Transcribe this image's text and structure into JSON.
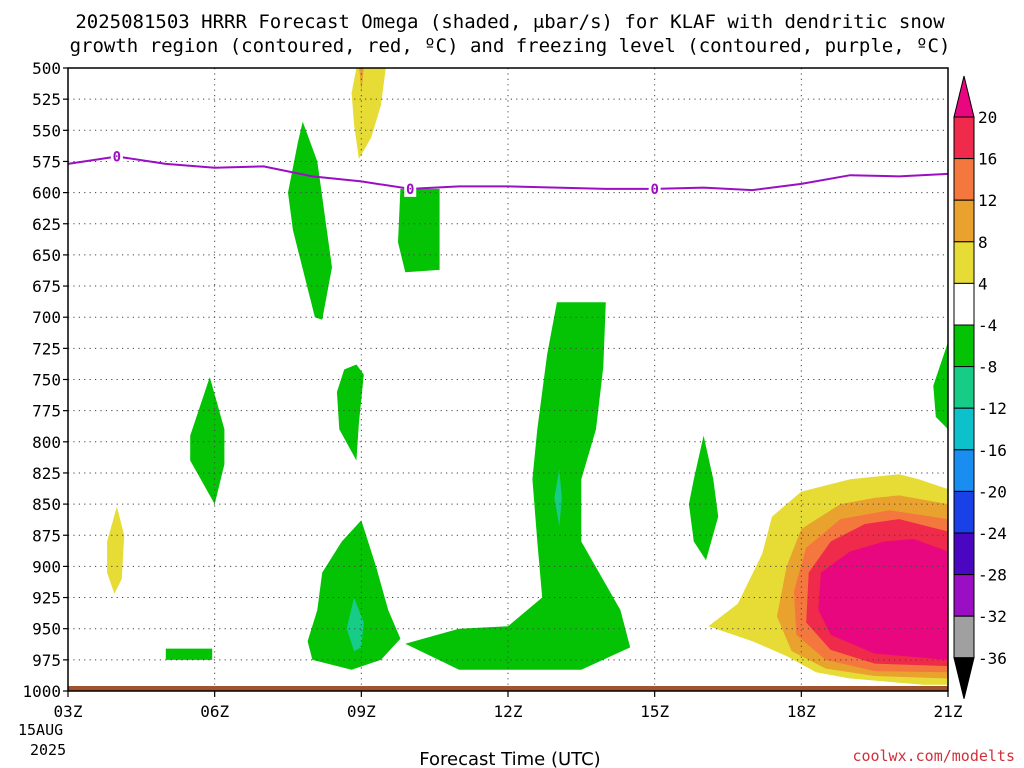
{
  "chart_data": {
    "type": "heatmap",
    "title_line1": "2025081503 HRRR Forecast Omega (shaded, μbar/s) for KLAF with dendritic snow",
    "title_line2": "growth region (contoured, red, ºC) and freezing level (contoured, purple, ºC)",
    "xlabel": "Forecast Time (UTC)",
    "date_label_1": "15AUG",
    "date_label_2": "2025",
    "credit": "coolwx.com/modelts",
    "x_ticks": [
      "03Z",
      "06Z",
      "09Z",
      "12Z",
      "15Z",
      "18Z",
      "21Z"
    ],
    "x_range_hours": [
      3,
      21
    ],
    "y_ticks": [
      "500",
      "525",
      "550",
      "575",
      "600",
      "625",
      "650",
      "675",
      "700",
      "725",
      "750",
      "775",
      "800",
      "825",
      "850",
      "875",
      "900",
      "925",
      "950",
      "975",
      "1000"
    ],
    "y_range_mb": [
      500,
      1000
    ],
    "grid": true,
    "colorbar": {
      "labels": [
        "20",
        "16",
        "12",
        "8",
        "4",
        "-4",
        "-8",
        "-12",
        "-16",
        "-20",
        "-24",
        "-28",
        "-32",
        "-36"
      ],
      "bins": [
        {
          "range": "> 20",
          "color": "#e8077f"
        },
        {
          "range": "16 to 20",
          "color": "#ef2a4a"
        },
        {
          "range": "12 to 16",
          "color": "#f4773e"
        },
        {
          "range": "8 to 12",
          "color": "#e9a22e"
        },
        {
          "range": "4 to 8",
          "color": "#e6dc35"
        },
        {
          "range": "-4 to 4",
          "color": "#ffffff"
        },
        {
          "range": "-8 to -4",
          "color": "#04c304"
        },
        {
          "range": "-12 to -8",
          "color": "#16cc86"
        },
        {
          "range": "-16 to -12",
          "color": "#0cc0cc"
        },
        {
          "range": "-20 to -16",
          "color": "#1a8ef0"
        },
        {
          "range": "-24 to -20",
          "color": "#1a40e8"
        },
        {
          "range": "-28 to -24",
          "color": "#4a06c0"
        },
        {
          "range": "-32 to -28",
          "color": "#9a0ec4"
        },
        {
          "range": "-36 to -32",
          "color": "#a0a0a0"
        },
        {
          "range": "< -36",
          "color": "#000000"
        }
      ]
    },
    "freezing_level": {
      "label": "0",
      "color": "#9b0fc4",
      "points": [
        [
          3.0,
          577
        ],
        [
          4.0,
          571
        ],
        [
          5.0,
          577
        ],
        [
          6.0,
          580
        ],
        [
          7.0,
          579
        ],
        [
          8.0,
          587
        ],
        [
          9.0,
          591
        ],
        [
          10.0,
          597
        ],
        [
          11.0,
          595
        ],
        [
          12.0,
          595
        ],
        [
          13.0,
          596
        ],
        [
          14.0,
          597
        ],
        [
          15.0,
          597
        ],
        [
          16.0,
          596
        ],
        [
          17.0,
          598
        ],
        [
          18.0,
          593
        ],
        [
          19.0,
          586
        ],
        [
          20.0,
          587
        ],
        [
          21.0,
          585
        ]
      ],
      "label_hours": [
        4.0,
        10.0,
        15.0
      ]
    },
    "omega_regions": [
      {
        "value_range": "4 to 8",
        "polygon": [
          [
            8.9,
            500
          ],
          [
            9.5,
            500
          ],
          [
            9.4,
            530
          ],
          [
            9.2,
            556
          ],
          [
            8.95,
            573
          ],
          [
            8.85,
            545
          ],
          [
            8.8,
            520
          ]
        ]
      },
      {
        "value_range": "8 to 12",
        "polygon": [
          [
            8.95,
            500
          ],
          [
            9.05,
            500
          ],
          [
            9.0,
            520
          ],
          [
            8.97,
            505
          ]
        ]
      },
      {
        "value_range": "-8 to -4",
        "polygon": [
          [
            7.8,
            543
          ],
          [
            8.1,
            575
          ],
          [
            8.4,
            660
          ],
          [
            8.2,
            702
          ],
          [
            8.05,
            700
          ],
          [
            7.6,
            630
          ],
          [
            7.5,
            600
          ],
          [
            7.7,
            560
          ]
        ]
      },
      {
        "value_range": "-8 to -4",
        "polygon": [
          [
            9.8,
            597
          ],
          [
            10.6,
            597
          ],
          [
            10.6,
            662
          ],
          [
            9.9,
            664
          ],
          [
            9.75,
            640
          ]
        ]
      },
      {
        "value_range": "-8 to -4",
        "polygon": [
          [
            8.65,
            742
          ],
          [
            8.9,
            738
          ],
          [
            9.05,
            746
          ],
          [
            8.95,
            785
          ],
          [
            8.9,
            815
          ],
          [
            8.55,
            790
          ],
          [
            8.5,
            760
          ]
        ]
      },
      {
        "value_range": "-8 to -4",
        "polygon": [
          [
            5.9,
            748
          ],
          [
            6.2,
            790
          ],
          [
            6.2,
            818
          ],
          [
            6.0,
            850
          ],
          [
            5.5,
            815
          ],
          [
            5.5,
            795
          ]
        ]
      },
      {
        "value_range": "4 to 8",
        "polygon": [
          [
            4.0,
            852
          ],
          [
            4.15,
            875
          ],
          [
            4.1,
            910
          ],
          [
            3.95,
            922
          ],
          [
            3.8,
            905
          ],
          [
            3.8,
            880
          ]
        ]
      },
      {
        "value_range": "-8 to -4",
        "polygon": [
          [
            9.0,
            863
          ],
          [
            9.3,
            900
          ],
          [
            9.55,
            935
          ],
          [
            9.8,
            958
          ],
          [
            9.4,
            975
          ],
          [
            8.8,
            983
          ],
          [
            8.0,
            975
          ],
          [
            7.9,
            960
          ],
          [
            8.1,
            935
          ],
          [
            8.2,
            905
          ],
          [
            8.6,
            880
          ]
        ]
      },
      {
        "value_range": "-12 to -8",
        "polygon": [
          [
            8.85,
            925
          ],
          [
            9.05,
            945
          ],
          [
            9.0,
            965
          ],
          [
            8.85,
            968
          ],
          [
            8.7,
            950
          ]
        ]
      },
      {
        "value_range": "-8 to -4",
        "polygon": [
          [
            5.0,
            966
          ],
          [
            5.95,
            966
          ],
          [
            5.95,
            975
          ],
          [
            5.0,
            975
          ]
        ]
      },
      {
        "value_range": "-8 to -4",
        "polygon": [
          [
            13.0,
            688
          ],
          [
            14.0,
            688
          ],
          [
            13.95,
            740
          ],
          [
            13.8,
            790
          ],
          [
            13.5,
            830
          ],
          [
            13.5,
            880
          ],
          [
            14.3,
            935
          ],
          [
            14.5,
            965
          ],
          [
            13.5,
            983
          ],
          [
            11.0,
            983
          ],
          [
            9.9,
            962
          ],
          [
            11.0,
            950
          ],
          [
            12.0,
            948
          ],
          [
            12.7,
            925
          ],
          [
            12.6,
            880
          ],
          [
            12.5,
            830
          ],
          [
            12.6,
            790
          ],
          [
            12.8,
            730
          ]
        ]
      },
      {
        "value_range": "-12 to -8",
        "polygon": [
          [
            13.05,
            822
          ],
          [
            13.1,
            845
          ],
          [
            13.05,
            868
          ],
          [
            12.95,
            845
          ]
        ]
      },
      {
        "value_range": "-8 to -4",
        "polygon": [
          [
            16.0,
            795
          ],
          [
            16.2,
            830
          ],
          [
            16.3,
            860
          ],
          [
            16.05,
            895
          ],
          [
            15.8,
            880
          ],
          [
            15.7,
            850
          ],
          [
            15.8,
            830
          ]
        ]
      },
      {
        "value_range": "-8 to -4",
        "polygon": [
          [
            21.0,
            720
          ],
          [
            21.0,
            790
          ],
          [
            20.75,
            780
          ],
          [
            20.7,
            755
          ]
        ]
      },
      {
        "value_range": "4 to 8",
        "polygon": [
          [
            20.0,
            826
          ],
          [
            20.4,
            830
          ],
          [
            21.0,
            838
          ],
          [
            21.0,
            995
          ],
          [
            20.5,
            995
          ],
          [
            19.0,
            990
          ],
          [
            18.3,
            985
          ],
          [
            17.7,
            972
          ],
          [
            17.0,
            960
          ],
          [
            16.1,
            948
          ],
          [
            16.7,
            930
          ],
          [
            17.2,
            890
          ],
          [
            17.4,
            860
          ],
          [
            18.0,
            840
          ],
          [
            19.0,
            830
          ]
        ]
      },
      {
        "value_range": "8 to 12",
        "polygon": [
          [
            19.5,
            845
          ],
          [
            20.0,
            843
          ],
          [
            21.0,
            850
          ],
          [
            21.0,
            990
          ],
          [
            19.5,
            988
          ],
          [
            18.5,
            982
          ],
          [
            17.8,
            968
          ],
          [
            17.5,
            940
          ],
          [
            17.7,
            900
          ],
          [
            18.0,
            870
          ],
          [
            18.8,
            850
          ]
        ]
      },
      {
        "value_range": "12 to 16",
        "polygon": [
          [
            19.8,
            855
          ],
          [
            21.0,
            862
          ],
          [
            21.0,
            985
          ],
          [
            19.5,
            984
          ],
          [
            18.5,
            975
          ],
          [
            17.9,
            955
          ],
          [
            17.85,
            920
          ],
          [
            18.1,
            885
          ],
          [
            18.8,
            862
          ]
        ]
      },
      {
        "value_range": "16 to 20",
        "polygon": [
          [
            20.0,
            862
          ],
          [
            21.0,
            872
          ],
          [
            21.0,
            980
          ],
          [
            19.5,
            978
          ],
          [
            18.6,
            967
          ],
          [
            18.1,
            945
          ],
          [
            18.15,
            905
          ],
          [
            18.6,
            880
          ],
          [
            19.3,
            866
          ]
        ]
      },
      {
        "value_range": "> 20",
        "polygon": [
          [
            20.3,
            878
          ],
          [
            21.0,
            888
          ],
          [
            21.0,
            975
          ],
          [
            19.5,
            970
          ],
          [
            18.6,
            955
          ],
          [
            18.35,
            935
          ],
          [
            18.4,
            905
          ],
          [
            19.0,
            888
          ],
          [
            19.7,
            880
          ]
        ]
      }
    ]
  }
}
